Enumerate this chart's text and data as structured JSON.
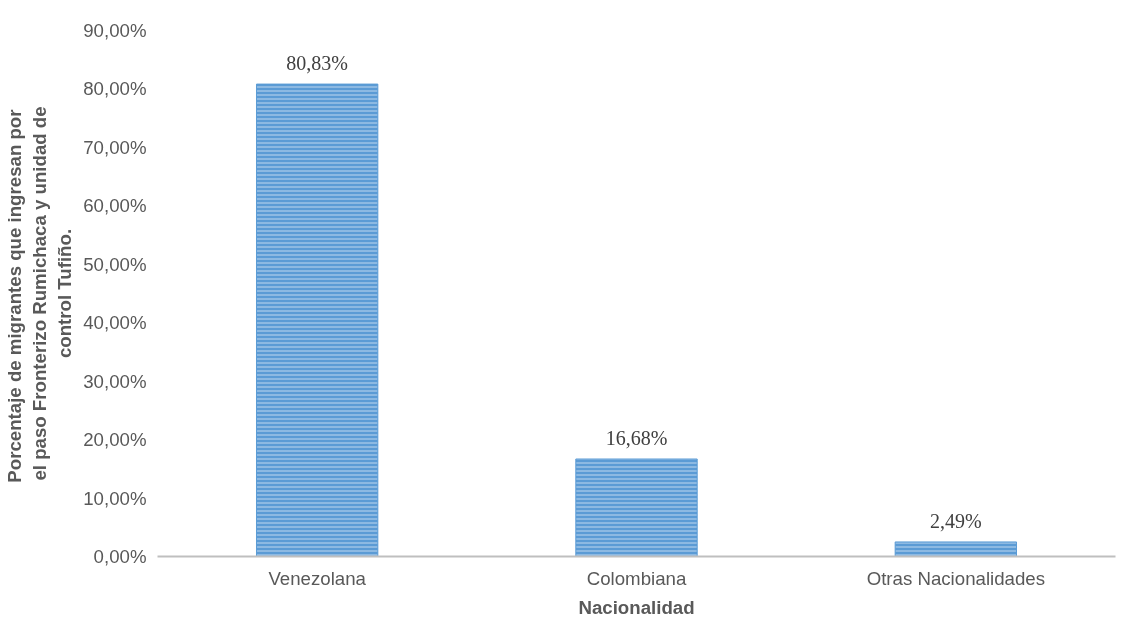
{
  "chart_data": {
    "type": "bar",
    "xlabel": "Nacionalidad",
    "ylabel": "Porcentaje de migrantes  que ingresan por el paso Fronterizo Rumichaca y unidad de control Tufiño.",
    "categories": [
      "Venezolana",
      "Colombiana",
      "Otras Nacionalidades"
    ],
    "values": [
      80.83,
      16.68,
      2.49
    ],
    "value_labels": [
      "80,83%",
      "16,68%",
      "2,49%"
    ],
    "color": "#5b9bd5",
    "ylim": [
      0,
      90
    ],
    "yticks": [
      {
        "value": 0,
        "label": "0,00%"
      },
      {
        "value": 10,
        "label": "10,00%"
      },
      {
        "value": 20,
        "label": "20,00%"
      },
      {
        "value": 30,
        "label": "30,00%"
      },
      {
        "value": 40,
        "label": "40,00%"
      },
      {
        "value": 50,
        "label": "50,00%"
      },
      {
        "value": 60,
        "label": "60,00%"
      },
      {
        "value": 70,
        "label": "70,00%"
      },
      {
        "value": 80,
        "label": "80,00%"
      },
      {
        "value": 90,
        "label": "90,00%"
      }
    ],
    "grid": false
  }
}
